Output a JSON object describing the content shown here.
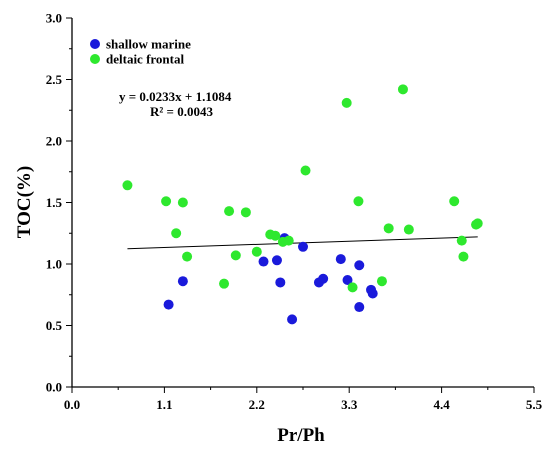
{
  "chart_data": {
    "type": "scatter",
    "xlabel": "Pr/Ph",
    "ylabel": "TOC(%)",
    "xlim": [
      0.0,
      5.5
    ],
    "ylim": [
      0.0,
      3.0
    ],
    "x_ticks": [
      0.0,
      1.1,
      2.2,
      3.3,
      4.4,
      5.5
    ],
    "x_tick_labels": [
      "0.0",
      "1.1",
      "2.2",
      "3.3",
      "4.4",
      "5.5"
    ],
    "y_ticks": [
      0.0,
      0.5,
      1.0,
      1.5,
      2.0,
      2.5,
      3.0
    ],
    "y_tick_labels": [
      "0.0",
      "0.5",
      "1.0",
      "1.5",
      "2.0",
      "2.5",
      "3.0"
    ],
    "grid": false,
    "legend_position": "top-left",
    "series": [
      {
        "name": "shallow marine",
        "color": "#1a1adb",
        "points": [
          {
            "x": 1.15,
            "y": 0.67
          },
          {
            "x": 1.32,
            "y": 0.86
          },
          {
            "x": 2.28,
            "y": 1.02
          },
          {
            "x": 2.44,
            "y": 1.03
          },
          {
            "x": 2.48,
            "y": 0.85
          },
          {
            "x": 2.53,
            "y": 1.21
          },
          {
            "x": 2.62,
            "y": 0.55
          },
          {
            "x": 2.75,
            "y": 1.14
          },
          {
            "x": 2.94,
            "y": 0.85
          },
          {
            "x": 2.99,
            "y": 0.88
          },
          {
            "x": 3.2,
            "y": 1.04
          },
          {
            "x": 3.28,
            "y": 0.87
          },
          {
            "x": 3.42,
            "y": 0.99
          },
          {
            "x": 3.42,
            "y": 0.65
          },
          {
            "x": 3.56,
            "y": 0.79
          },
          {
            "x": 3.58,
            "y": 0.76
          }
        ]
      },
      {
        "name": "deltaic frontal",
        "color": "#2ee82e",
        "points": [
          {
            "x": 0.66,
            "y": 1.64
          },
          {
            "x": 1.12,
            "y": 1.51
          },
          {
            "x": 1.24,
            "y": 1.25
          },
          {
            "x": 1.32,
            "y": 1.5
          },
          {
            "x": 1.37,
            "y": 1.06
          },
          {
            "x": 1.81,
            "y": 0.84
          },
          {
            "x": 1.87,
            "y": 1.43
          },
          {
            "x": 1.95,
            "y": 1.07
          },
          {
            "x": 2.07,
            "y": 1.42
          },
          {
            "x": 2.2,
            "y": 1.1
          },
          {
            "x": 2.36,
            "y": 1.24
          },
          {
            "x": 2.42,
            "y": 1.23
          },
          {
            "x": 2.51,
            "y": 1.18
          },
          {
            "x": 2.58,
            "y": 1.19
          },
          {
            "x": 2.78,
            "y": 1.76
          },
          {
            "x": 3.27,
            "y": 2.31
          },
          {
            "x": 3.34,
            "y": 0.81
          },
          {
            "x": 3.41,
            "y": 1.51
          },
          {
            "x": 3.69,
            "y": 0.86
          },
          {
            "x": 3.77,
            "y": 1.29
          },
          {
            "x": 3.94,
            "y": 2.42
          },
          {
            "x": 4.01,
            "y": 1.28
          },
          {
            "x": 4.55,
            "y": 1.51
          },
          {
            "x": 4.64,
            "y": 1.19
          },
          {
            "x": 4.66,
            "y": 1.06
          },
          {
            "x": 4.81,
            "y": 1.32
          },
          {
            "x": 4.83,
            "y": 1.33
          }
        ]
      }
    ],
    "trendline": {
      "slope": 0.0233,
      "intercept": 1.1084,
      "x_range": [
        0.66,
        4.83
      ]
    },
    "annotations": {
      "equation": "y = 0.0233x + 1.1084",
      "r_squared": "R² = 0.0043"
    }
  }
}
